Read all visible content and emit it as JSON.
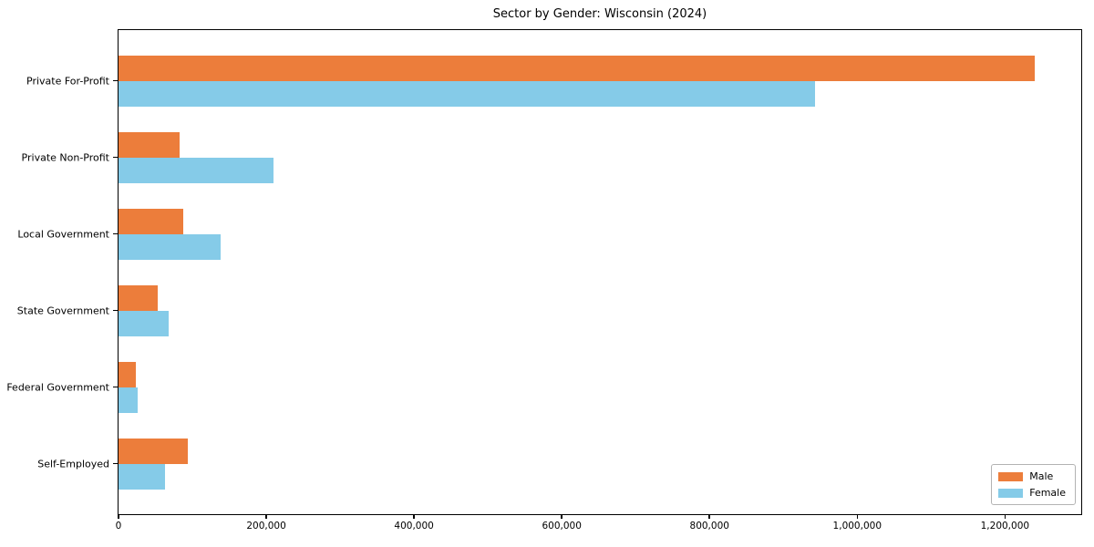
{
  "title": "Sector by Gender: Wisconsin (2024)",
  "colors": {
    "male": "#ec7d3b",
    "female": "#85cbe8",
    "spine": "#000000",
    "background": "#ffffff",
    "legend_border": "#b3b3b3"
  },
  "chart_data": {
    "type": "bar",
    "orientation": "horizontal",
    "title": "Sector by Gender: Wisconsin (2024)",
    "xlabel": "",
    "ylabel": "",
    "grid": false,
    "legend_position": "lower right",
    "categories": [
      "Private For-Profit",
      "Private Non-Profit",
      "Local Government",
      "State Government",
      "Federal Government",
      "Self-Employed"
    ],
    "series": [
      {
        "name": "Male",
        "color": "#ec7d3b",
        "values": [
          1240000,
          83000,
          88000,
          53000,
          23000,
          94000
        ]
      },
      {
        "name": "Female",
        "color": "#85cbe8",
        "values": [
          943000,
          210000,
          138000,
          68000,
          26000,
          63000
        ]
      }
    ],
    "xlim": [
      0,
      1302000
    ],
    "x_ticks": [
      {
        "value": 0,
        "label": "0"
      },
      {
        "value": 200000,
        "label": "200,000"
      },
      {
        "value": 400000,
        "label": "400,000"
      },
      {
        "value": 600000,
        "label": "600,000"
      },
      {
        "value": 800000,
        "label": "800,000"
      },
      {
        "value": 1000000,
        "label": "1,000,000"
      },
      {
        "value": 1200000,
        "label": "1,200,000"
      }
    ]
  }
}
